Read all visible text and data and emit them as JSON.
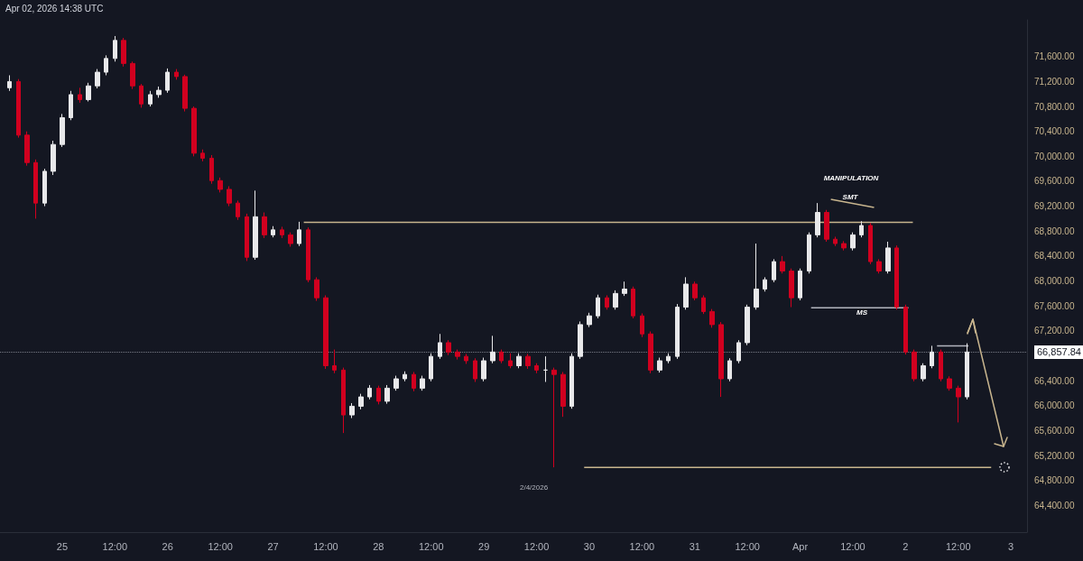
{
  "chart_data": {
    "type": "candlestick",
    "annotations": [
      "Apr 02, 2026 14:38 UTC",
      "2/4/2026",
      "MANIPULATION",
      "SMT",
      "MS"
    ],
    "x": [
      "2026-03-24T12:00",
      "2026-03-24T14:00",
      "2026-03-24T16:00",
      "2026-03-24T18:00",
      "2026-03-24T20:00",
      "2026-03-24T22:00",
      "2026-03-25T00:00",
      "2026-03-25T02:00",
      "2026-03-25T04:00",
      "2026-03-25T06:00",
      "2026-03-25T08:00",
      "2026-03-25T10:00",
      "2026-03-25T12:00",
      "2026-03-25T14:00",
      "2026-03-25T16:00",
      "2026-03-25T18:00",
      "2026-03-25T20:00",
      "2026-03-25T22:00",
      "2026-03-26T00:00",
      "2026-03-26T02:00",
      "2026-03-26T04:00",
      "2026-03-26T06:00",
      "2026-03-26T08:00",
      "2026-03-26T10:00",
      "2026-03-26T12:00",
      "2026-03-26T14:00",
      "2026-03-26T16:00",
      "2026-03-26T18:00",
      "2026-03-26T20:00",
      "2026-03-26T22:00",
      "2026-03-27T00:00",
      "2026-03-27T02:00",
      "2026-03-27T04:00",
      "2026-03-27T06:00",
      "2026-03-27T08:00",
      "2026-03-27T10:00",
      "2026-03-27T12:00",
      "2026-03-27T14:00",
      "2026-03-27T16:00",
      "2026-03-27T18:00",
      "2026-03-27T20:00",
      "2026-03-27T22:00",
      "2026-03-28T00:00",
      "2026-03-28T02:00",
      "2026-03-28T04:00",
      "2026-03-28T06:00",
      "2026-03-28T08:00",
      "2026-03-28T10:00",
      "2026-03-28T12:00",
      "2026-03-28T14:00",
      "2026-03-28T16:00",
      "2026-03-28T18:00",
      "2026-03-28T20:00",
      "2026-03-28T22:00",
      "2026-03-29T00:00",
      "2026-03-29T02:00",
      "2026-03-29T04:00",
      "2026-03-29T06:00",
      "2026-03-29T08:00",
      "2026-03-29T10:00",
      "2026-03-29T12:00",
      "2026-03-29T14:00",
      "2026-03-29T16:00",
      "2026-03-29T18:00",
      "2026-03-29T20:00",
      "2026-03-29T22:00",
      "2026-03-30T00:00",
      "2026-03-30T02:00",
      "2026-03-30T04:00",
      "2026-03-30T06:00",
      "2026-03-30T08:00",
      "2026-03-30T10:00",
      "2026-03-30T12:00",
      "2026-03-30T14:00",
      "2026-03-30T16:00",
      "2026-03-30T18:00",
      "2026-03-30T20:00",
      "2026-03-30T22:00",
      "2026-03-31T00:00",
      "2026-03-31T02:00",
      "2026-03-31T04:00",
      "2026-03-31T06:00",
      "2026-03-31T08:00",
      "2026-03-31T10:00",
      "2026-03-31T12:00",
      "2026-03-31T14:00",
      "2026-03-31T16:00",
      "2026-03-31T18:00",
      "2026-03-31T20:00",
      "2026-03-31T22:00",
      "2026-04-01T00:00",
      "2026-04-01T02:00",
      "2026-04-01T04:00",
      "2026-04-01T06:00",
      "2026-04-01T08:00",
      "2026-04-01T10:00",
      "2026-04-01T12:00",
      "2026-04-01T14:00",
      "2026-04-01T16:00",
      "2026-04-01T18:00",
      "2026-04-01T20:00",
      "2026-04-01T22:00",
      "2026-04-02T00:00",
      "2026-04-02T02:00",
      "2026-04-02T04:00",
      "2026-04-02T06:00",
      "2026-04-02T08:00",
      "2026-04-02T10:00",
      "2026-04-02T12:00",
      "2026-04-02T14:00"
    ],
    "ohlc": [
      [
        71100,
        71300,
        71050,
        71200
      ],
      [
        71200,
        71240,
        70300,
        70340
      ],
      [
        70340,
        70400,
        69850,
        69900
      ],
      [
        69900,
        69950,
        69000,
        69250
      ],
      [
        69250,
        69800,
        69200,
        69760
      ],
      [
        69760,
        70250,
        69700,
        70190
      ],
      [
        70190,
        70680,
        70150,
        70620
      ],
      [
        70620,
        71050,
        70580,
        70990
      ],
      [
        70990,
        71100,
        70860,
        70910
      ],
      [
        70910,
        71180,
        70880,
        71130
      ],
      [
        71130,
        71400,
        71090,
        71350
      ],
      [
        71350,
        71620,
        71300,
        71570
      ],
      [
        71570,
        71930,
        71520,
        71860
      ],
      [
        71860,
        71900,
        71440,
        71490
      ],
      [
        71490,
        71520,
        71080,
        71130
      ],
      [
        71130,
        71160,
        70780,
        70840
      ],
      [
        70840,
        71050,
        70800,
        70990
      ],
      [
        70990,
        71120,
        70940,
        71060
      ],
      [
        71060,
        71410,
        71020,
        71350
      ],
      [
        71350,
        71400,
        71230,
        71280
      ],
      [
        71280,
        71310,
        70720,
        70770
      ],
      [
        70770,
        70800,
        70000,
        70050
      ],
      [
        70050,
        70110,
        69920,
        69970
      ],
      [
        69970,
        70020,
        69560,
        69610
      ],
      [
        69610,
        69660,
        69420,
        69470
      ],
      [
        69470,
        69520,
        69200,
        69250
      ],
      [
        69250,
        69290,
        68980,
        69030
      ],
      [
        69030,
        69080,
        68320,
        68380
      ],
      [
        68380,
        69450,
        68340,
        69030
      ],
      [
        69030,
        69100,
        68690,
        68740
      ],
      [
        68740,
        68880,
        68700,
        68820
      ],
      [
        68820,
        68870,
        68690,
        68740
      ],
      [
        68740,
        68780,
        68550,
        68600
      ],
      [
        68600,
        68950,
        68560,
        68820
      ],
      [
        68820,
        68860,
        67980,
        68020
      ],
      [
        68020,
        68060,
        67680,
        67730
      ],
      [
        67730,
        67770,
        66590,
        66640
      ],
      [
        66640,
        66900,
        66520,
        66570
      ],
      [
        66570,
        66610,
        65560,
        65850
      ],
      [
        65850,
        66040,
        65800,
        65990
      ],
      [
        65990,
        66190,
        65940,
        66140
      ],
      [
        66140,
        66330,
        66100,
        66280
      ],
      [
        66280,
        66320,
        66020,
        66070
      ],
      [
        66070,
        66330,
        66030,
        66280
      ],
      [
        66280,
        66480,
        66240,
        66430
      ],
      [
        66430,
        66550,
        66390,
        66500
      ],
      [
        66500,
        66540,
        66230,
        66280
      ],
      [
        66280,
        66480,
        66240,
        66430
      ],
      [
        66430,
        66840,
        66390,
        66790
      ],
      [
        66790,
        67150,
        66750,
        67010
      ],
      [
        67010,
        67050,
        66810,
        66860
      ],
      [
        66860,
        66900,
        66740,
        66790
      ],
      [
        66790,
        66830,
        66670,
        66720
      ],
      [
        66720,
        66760,
        66380,
        66430
      ],
      [
        66430,
        66770,
        66390,
        66720
      ],
      [
        66720,
        67120,
        66680,
        66860
      ],
      [
        66860,
        66900,
        66680,
        66720
      ],
      [
        66720,
        66840,
        66600,
        66640
      ],
      [
        66640,
        66840,
        66600,
        66790
      ],
      [
        66790,
        66830,
        66590,
        66640
      ],
      [
        66640,
        66680,
        66520,
        66570
      ],
      [
        66570,
        66790,
        66380,
        66570
      ],
      [
        66570,
        66610,
        65010,
        66500
      ],
      [
        66500,
        66540,
        65820,
        65990
      ],
      [
        65990,
        66840,
        65950,
        66790
      ],
      [
        66790,
        67350,
        66750,
        67300
      ],
      [
        67300,
        67490,
        67260,
        67440
      ],
      [
        67440,
        67780,
        67400,
        67730
      ],
      [
        67730,
        67770,
        67540,
        67580
      ],
      [
        67580,
        67850,
        67540,
        67800
      ],
      [
        67800,
        67990,
        67760,
        67870
      ],
      [
        67870,
        67910,
        67400,
        67440
      ],
      [
        67440,
        67480,
        67100,
        67150
      ],
      [
        67150,
        67190,
        66520,
        66570
      ],
      [
        66570,
        66770,
        66530,
        66720
      ],
      [
        66720,
        66840,
        66680,
        66790
      ],
      [
        66790,
        67630,
        66750,
        67580
      ],
      [
        67580,
        68060,
        67540,
        67950
      ],
      [
        67950,
        67990,
        67690,
        67730
      ],
      [
        67730,
        67770,
        67470,
        67510
      ],
      [
        67510,
        67550,
        67250,
        67300
      ],
      [
        67300,
        67340,
        66140,
        66430
      ],
      [
        66430,
        66760,
        66390,
        66720
      ],
      [
        66720,
        67050,
        66680,
        67010
      ],
      [
        67010,
        67620,
        66970,
        67580
      ],
      [
        67580,
        68600,
        67540,
        67870
      ],
      [
        67870,
        68060,
        67830,
        68020
      ],
      [
        68020,
        68350,
        67980,
        68310
      ],
      [
        68310,
        68400,
        68120,
        68160
      ],
      [
        68160,
        68200,
        67580,
        67730
      ],
      [
        67730,
        68200,
        67690,
        68160
      ],
      [
        68160,
        68780,
        68120,
        68740
      ],
      [
        68740,
        69250,
        68700,
        69100
      ],
      [
        69100,
        69140,
        68630,
        68670
      ],
      [
        68670,
        68710,
        68560,
        68600
      ],
      [
        68600,
        68640,
        68490,
        68530
      ],
      [
        68530,
        68780,
        68490,
        68740
      ],
      [
        68740,
        68960,
        68700,
        68890
      ],
      [
        68890,
        68930,
        68270,
        68310
      ],
      [
        68310,
        68350,
        68120,
        68160
      ],
      [
        68160,
        68630,
        68120,
        68530
      ],
      [
        68530,
        68570,
        67540,
        67580
      ],
      [
        67580,
        67620,
        66820,
        66860
      ],
      [
        66860,
        66900,
        66390,
        66430
      ],
      [
        66430,
        66680,
        66390,
        66640
      ],
      [
        66640,
        66960,
        66600,
        66860
      ],
      [
        66860,
        66900,
        66390,
        66430
      ],
      [
        66430,
        66470,
        66240,
        66280
      ],
      [
        66280,
        66320,
        65730,
        66140
      ],
      [
        66140,
        67000,
        66100,
        66860
      ]
    ],
    "series": [
      {
        "type": "line",
        "color": "#c8b58e",
        "x": [
          "2026-03-27T07:00",
          "2026-04-02T01:40"
        ],
        "values": [
          68940,
          68940
        ]
      },
      {
        "type": "line",
        "color": "#c8b58e",
        "x": [
          "2026-04-01T07:00",
          "2026-04-01T16:50"
        ],
        "values": [
          69310,
          69180
        ]
      },
      {
        "type": "line",
        "color": "#b2b5be",
        "x": [
          "2026-04-01T02:30",
          "2026-04-02T00:40"
        ],
        "values": [
          67570,
          67570
        ]
      },
      {
        "type": "line",
        "color": "#b2b5be",
        "x": [
          "2026-04-02T07:10",
          "2026-04-02T14:20"
        ],
        "values": [
          66960,
          66960
        ]
      },
      {
        "type": "line",
        "color": "#c8b58e",
        "x": [
          "2026-03-29T22:50",
          "2026-04-02T19:30"
        ],
        "values": [
          65010,
          65010
        ]
      }
    ],
    "ref_lines": [
      {
        "axis": "y",
        "value": 66857.84,
        "label": "66,857.84",
        "color": "#787b86",
        "line_style": "dotted"
      }
    ],
    "xlim": [
      "2026-03-24T09:50",
      "2026-04-03T03:40"
    ],
    "xticks": [
      {
        "value": "2026-03-25T00:00",
        "label": "25"
      },
      {
        "value": "2026-03-25T12:00",
        "label": "12:00"
      },
      {
        "value": "2026-03-26T00:00",
        "label": "26"
      },
      {
        "value": "2026-03-26T12:00",
        "label": "12:00"
      },
      {
        "value": "2026-03-27T00:00",
        "label": "27"
      },
      {
        "value": "2026-03-27T12:00",
        "label": "12:00"
      },
      {
        "value": "2026-03-28T00:00",
        "label": "28"
      },
      {
        "value": "2026-03-28T12:00",
        "label": "12:00"
      },
      {
        "value": "2026-03-29T00:00",
        "label": "29"
      },
      {
        "value": "2026-03-29T12:00",
        "label": "12:00"
      },
      {
        "value": "2026-03-30T00:00",
        "label": "30"
      },
      {
        "value": "2026-03-30T12:00",
        "label": "12:00"
      },
      {
        "value": "2026-03-31T00:00",
        "label": "31"
      },
      {
        "value": "2026-03-31T12:00",
        "label": "12:00"
      },
      {
        "value": "2026-04-01T00:00",
        "label": "Apr"
      },
      {
        "value": "2026-04-01T12:00",
        "label": "12:00"
      },
      {
        "value": "2026-04-02T00:00",
        "label": "2"
      },
      {
        "value": "2026-04-02T12:00",
        "label": "12:00"
      },
      {
        "value": "2026-04-03T00:00",
        "label": "3"
      }
    ],
    "ylim": [
      63970,
      72190
    ],
    "yticks": [
      {
        "value": 64400,
        "label": "64,400.00"
      },
      {
        "value": 64800,
        "label": "64,800.00"
      },
      {
        "value": 65200,
        "label": "65,200.00"
      },
      {
        "value": 65600,
        "label": "65,600.00"
      },
      {
        "value": 66000,
        "label": "66,000.00"
      },
      {
        "value": 66400,
        "label": "66,400.00"
      },
      {
        "value": 67200,
        "label": "67,200.00"
      },
      {
        "value": 67600,
        "label": "67,600.00"
      },
      {
        "value": 68000,
        "label": "68,000.00"
      },
      {
        "value": 68400,
        "label": "68,400.00"
      },
      {
        "value": 68800,
        "label": "68,800.00"
      },
      {
        "value": 69200,
        "label": "69,200.00"
      },
      {
        "value": 69600,
        "label": "69,600.00"
      },
      {
        "value": 70000,
        "label": "70,000.00"
      },
      {
        "value": 70400,
        "label": "70,400.00"
      },
      {
        "value": 70800,
        "label": "70,800.00"
      },
      {
        "value": 71200,
        "label": "71,200.00"
      },
      {
        "value": 71600,
        "label": "71,600.00"
      }
    ],
    "grid": false
  }
}
